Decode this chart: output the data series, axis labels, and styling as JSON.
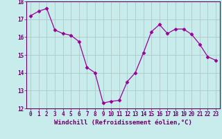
{
  "x": [
    0,
    1,
    2,
    3,
    4,
    5,
    6,
    7,
    8,
    9,
    10,
    11,
    12,
    13,
    14,
    15,
    16,
    17,
    18,
    19,
    20,
    21,
    22,
    23
  ],
  "y": [
    17.2,
    17.45,
    17.6,
    16.4,
    16.2,
    16.1,
    15.75,
    14.3,
    14.0,
    12.3,
    12.4,
    12.45,
    13.5,
    14.0,
    15.1,
    16.3,
    16.7,
    16.2,
    16.45,
    16.45,
    16.15,
    15.6,
    14.9,
    14.7
  ],
  "line_color": "#990099",
  "marker": "D",
  "marker_size": 2.5,
  "bg_color": "#c8ecec",
  "grid_color": "#b0c8c8",
  "xlabel": "Windchill (Refroidissement éolien,°C)",
  "ylim": [
    12,
    18
  ],
  "xlim_min": -0.5,
  "xlim_max": 23.5,
  "yticks": [
    12,
    13,
    14,
    15,
    16,
    17,
    18
  ],
  "xticks": [
    0,
    1,
    2,
    3,
    4,
    5,
    6,
    7,
    8,
    9,
    10,
    11,
    12,
    13,
    14,
    15,
    16,
    17,
    18,
    19,
    20,
    21,
    22,
    23
  ],
  "axis_color": "#660066",
  "tick_color": "#660066",
  "label_fontsize": 6.5,
  "tick_fontsize": 5.5
}
